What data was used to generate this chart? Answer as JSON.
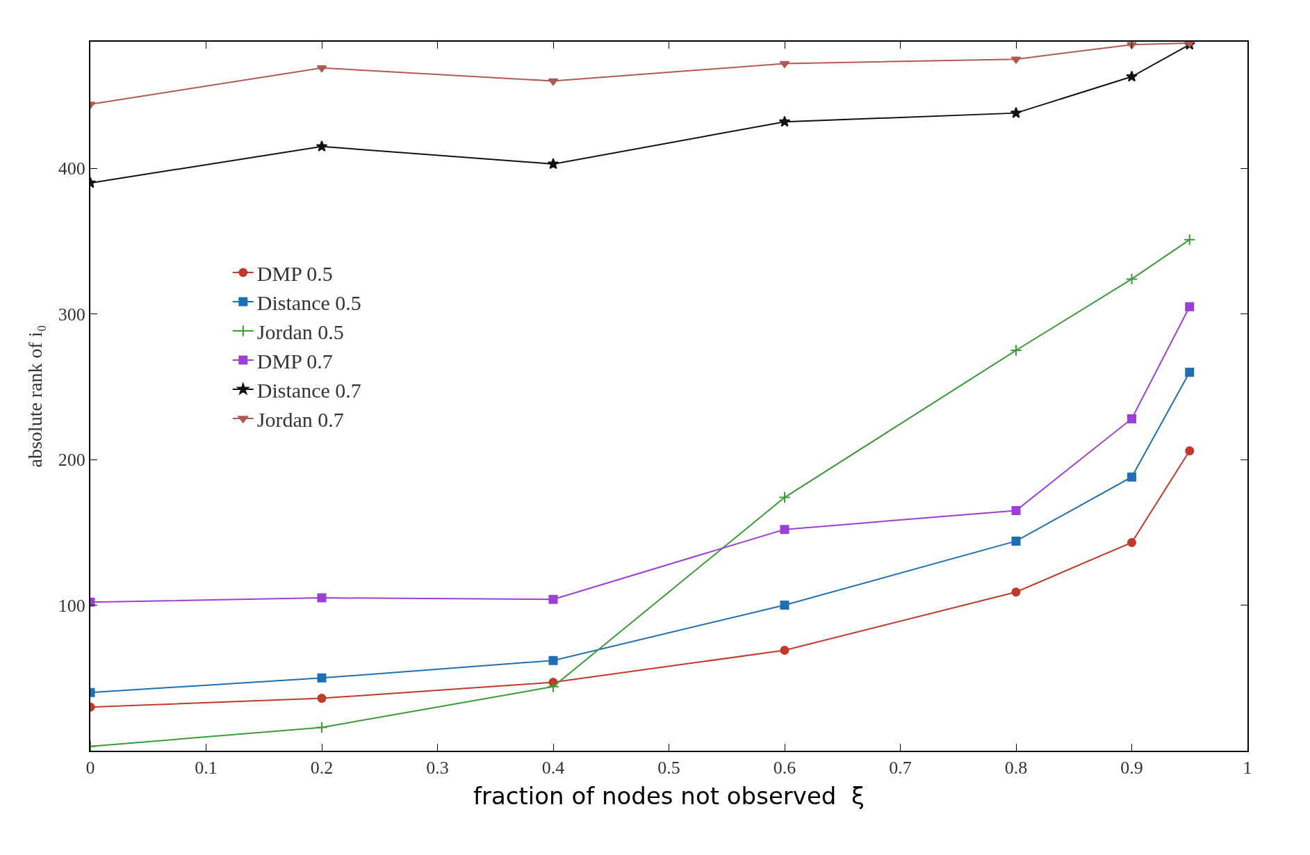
{
  "chart_data": {
    "type": "line",
    "xlabel": "fraction of nodes not observed  ξ",
    "ylabel": "absolute rank of i₀",
    "x": [
      0,
      0.2,
      0.4,
      0.6,
      0.8,
      0.9,
      0.95
    ],
    "xlim": [
      0,
      1
    ],
    "xticks": [
      0,
      0.1,
      0.2,
      0.3,
      0.4,
      0.5,
      0.6,
      0.7,
      0.8,
      0.9,
      1
    ],
    "ylim": [
      0,
      487
    ],
    "yticks": [
      100,
      200,
      300,
      400
    ],
    "legend": "left",
    "line_style": "solid",
    "series": [
      {
        "name": "DMP 0.5",
        "color": "#c0392b",
        "marker": "circle",
        "values": [
          30,
          36,
          47,
          69,
          109,
          143,
          206
        ]
      },
      {
        "name": "Distance 0.5",
        "color": "#1f6fb2",
        "marker": "square",
        "values": [
          40,
          50,
          62,
          100,
          144,
          188,
          260
        ]
      },
      {
        "name": "Jordan 0.5",
        "color": "#3a9a3a",
        "marker": "cross",
        "values": [
          3,
          16,
          44,
          174,
          275,
          324,
          351
        ]
      },
      {
        "name": "DMP 0.7",
        "color": "#9b3fd6",
        "marker": "square",
        "values": [
          102,
          105,
          104,
          152,
          165,
          228,
          305
        ]
      },
      {
        "name": "Distance 0.7",
        "color": "#111111",
        "marker": "star",
        "values": [
          390,
          415,
          403,
          432,
          438,
          463,
          485
        ]
      },
      {
        "name": "Jordan 0.7",
        "color": "#b05a55",
        "marker": "triangle",
        "values": [
          444,
          469,
          460,
          472,
          475,
          485,
          486
        ]
      }
    ]
  }
}
